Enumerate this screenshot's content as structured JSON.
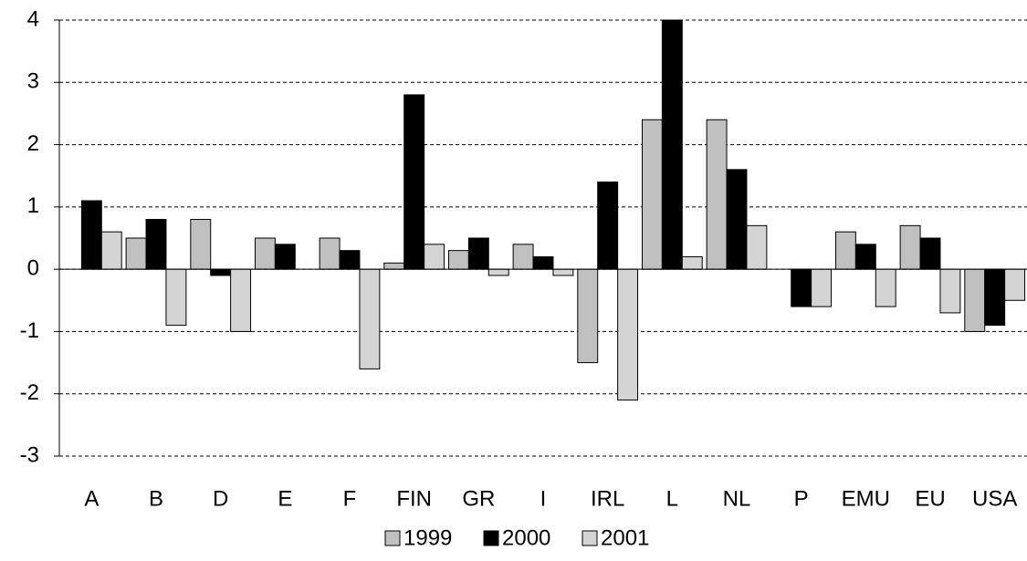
{
  "chart_data": {
    "type": "bar",
    "categories": [
      "A",
      "B",
      "D",
      "E",
      "F",
      "FIN",
      "GR",
      "I",
      "IRL",
      "L",
      "NL",
      "P",
      "EMU",
      "EU",
      "USA"
    ],
    "series": [
      {
        "name": "1999",
        "color": "#c0c0c0",
        "values": [
          0,
          0.5,
          0.8,
          0.5,
          0.5,
          0.1,
          0.3,
          0.4,
          -1.5,
          2.4,
          2.4,
          0,
          0.6,
          0.7,
          -1.0
        ]
      },
      {
        "name": "2000",
        "color": "#000000",
        "values": [
          1.1,
          0.8,
          -0.1,
          0.4,
          0.3,
          2.8,
          0.5,
          0.2,
          1.4,
          4.0,
          1.6,
          -0.6,
          0.4,
          0.5,
          -0.9
        ]
      },
      {
        "name": "2001",
        "color": "#d4d4d4",
        "values": [
          0.6,
          -0.9,
          -1.0,
          0,
          -1.6,
          0.4,
          -0.1,
          -0.1,
          -2.1,
          0.2,
          0.7,
          -0.6,
          -0.6,
          -0.7,
          -0.5
        ]
      }
    ],
    "ylim": [
      -3,
      4
    ],
    "yticks": [
      -3,
      -2,
      -1,
      0,
      1,
      2,
      3,
      4
    ],
    "grid": true,
    "legend": "bottom"
  }
}
